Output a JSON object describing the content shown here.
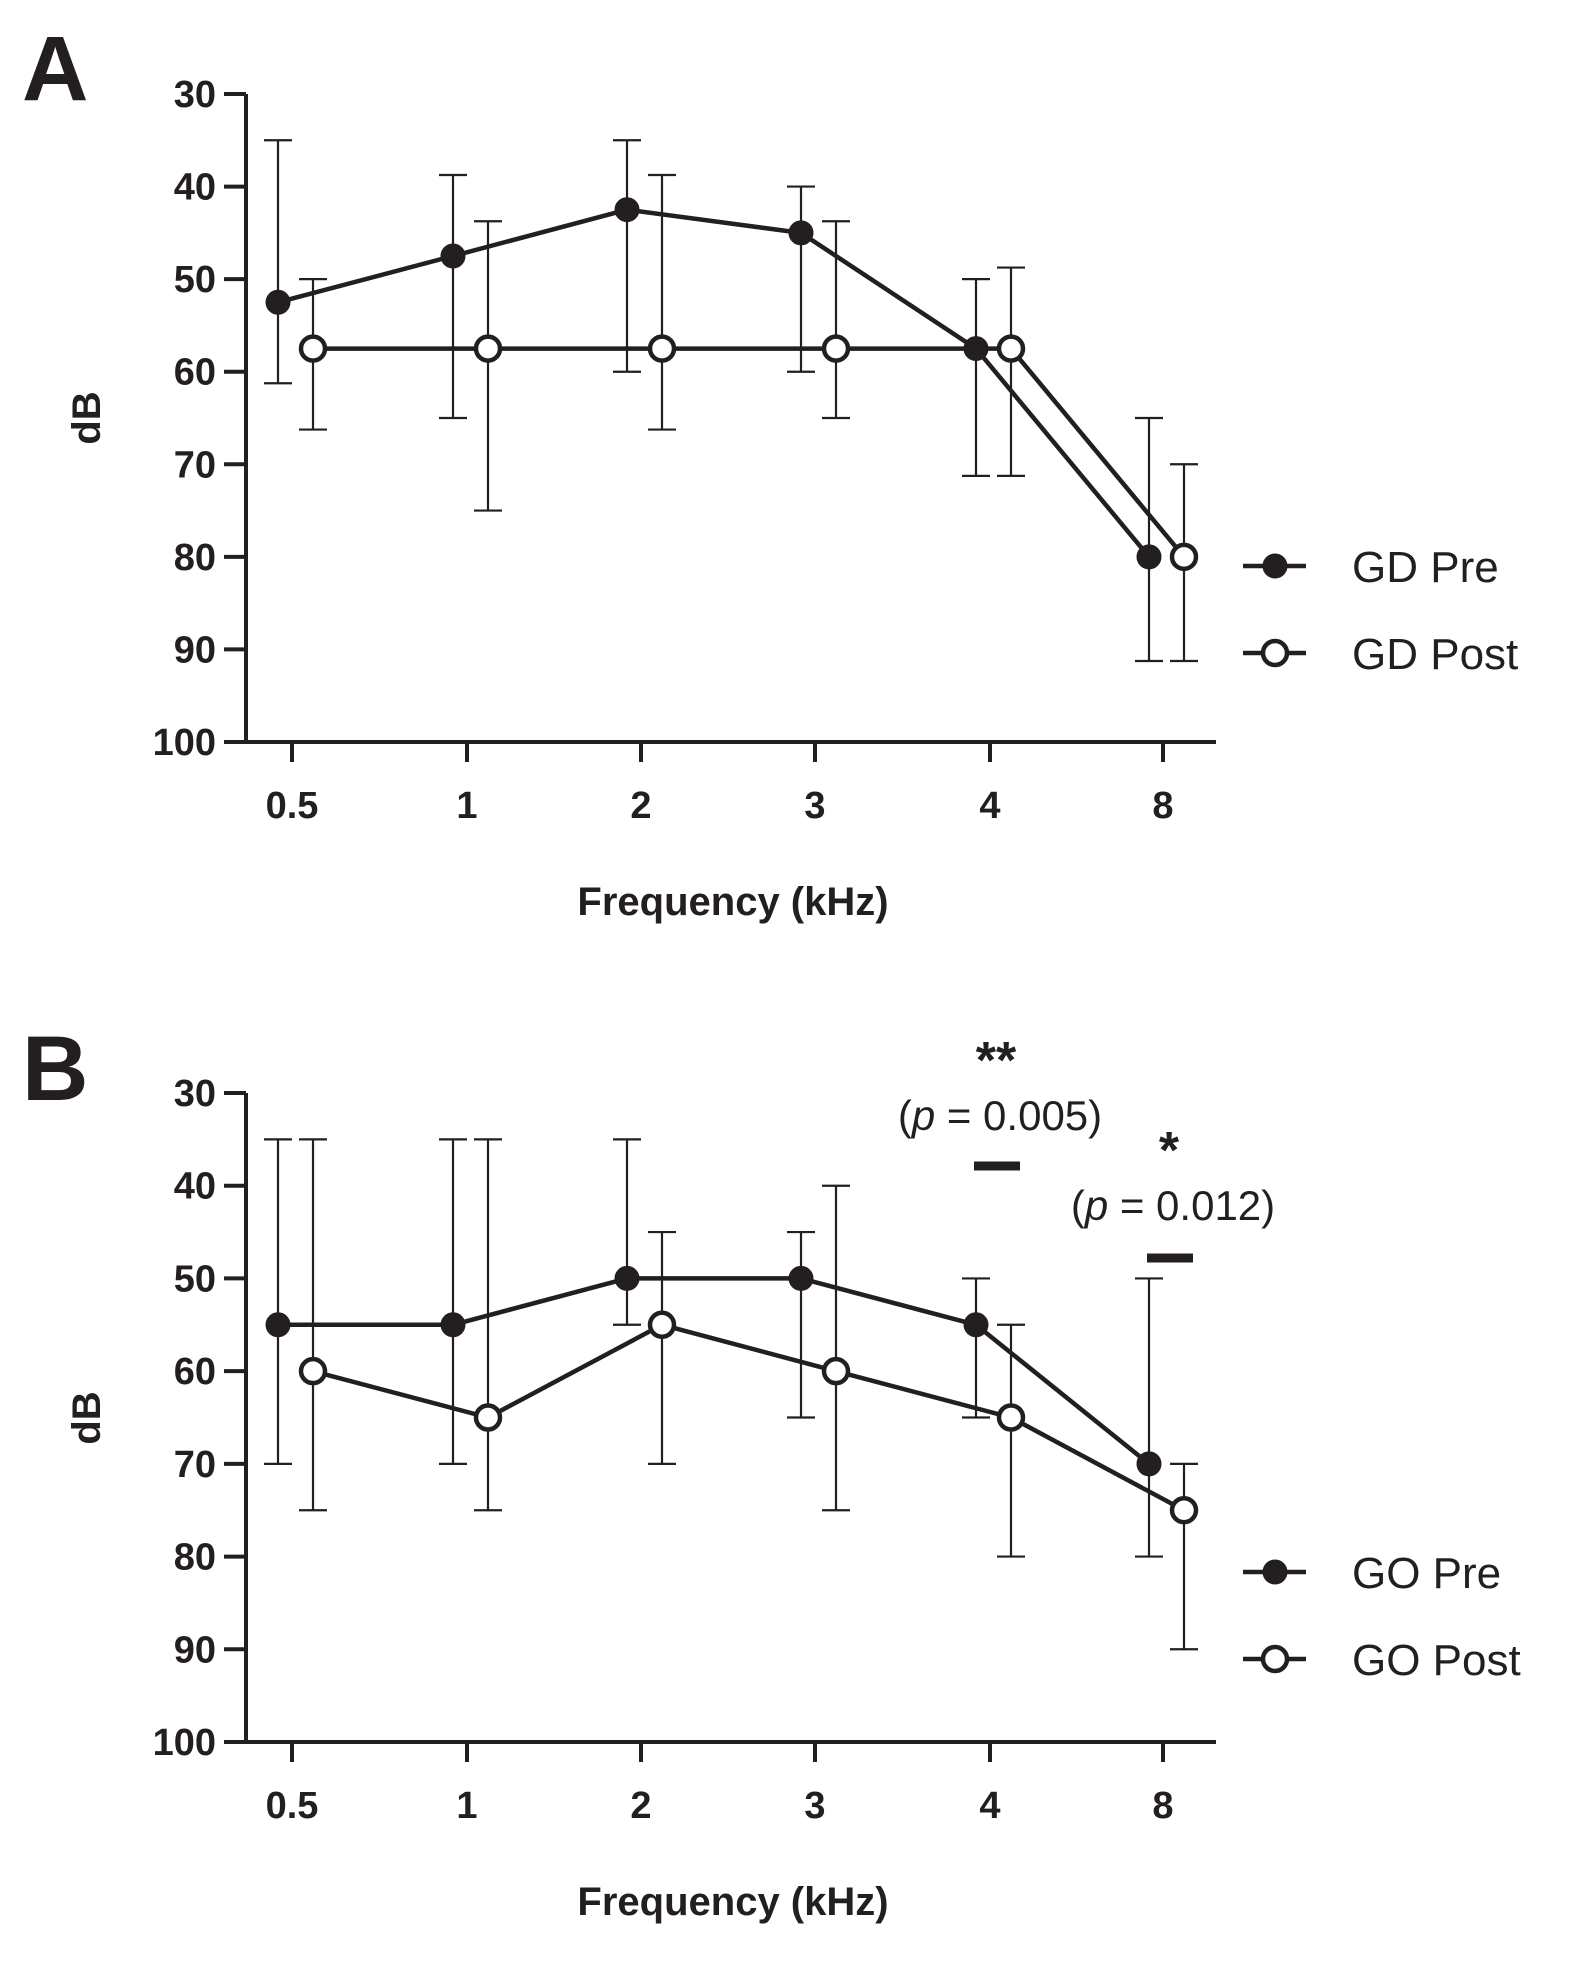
{
  "colors": {
    "ink": "#231f20",
    "marker_fill_open": "#ffffff",
    "background": "#ffffff"
  },
  "chart_data": [
    {
      "type": "line",
      "panel_label": "A",
      "title": "",
      "xlabel": "Frequency (kHz)",
      "ylabel": "dB",
      "categories": [
        "0.5",
        "1",
        "2",
        "3",
        "4",
        "8"
      ],
      "ylim": [
        100,
        30
      ],
      "y_inverted": true,
      "yticks": [
        "30",
        "40",
        "50",
        "60",
        "70",
        "80",
        "90",
        "100"
      ],
      "legend_position": "right",
      "series": [
        {
          "name": "GD Pre",
          "marker": "filled-circle",
          "values": [
            52.5,
            47.5,
            42.5,
            45,
            57.5,
            80
          ],
          "err_low": [
            35,
            38.75,
            35,
            40,
            50,
            65
          ],
          "err_high": [
            61.25,
            65,
            60,
            60,
            71.25,
            91.25
          ]
        },
        {
          "name": "GD Post",
          "marker": "open-circle",
          "values": [
            57.5,
            57.5,
            57.5,
            57.5,
            57.5,
            80
          ],
          "err_low": [
            50,
            43.75,
            38.75,
            43.75,
            48.75,
            70
          ],
          "err_high": [
            66.25,
            75,
            66.25,
            65,
            71.25,
            91.25
          ]
        }
      ],
      "annotations": []
    },
    {
      "type": "line",
      "panel_label": "B",
      "title": "",
      "xlabel": "Frequency (kHz)",
      "ylabel": "dB",
      "categories": [
        "0.5",
        "1",
        "2",
        "3",
        "4",
        "8"
      ],
      "ylim": [
        100,
        30
      ],
      "y_inverted": true,
      "yticks": [
        "30",
        "40",
        "50",
        "60",
        "70",
        "80",
        "90",
        "100"
      ],
      "legend_position": "right",
      "series": [
        {
          "name": "GO Pre",
          "marker": "filled-circle",
          "values": [
            55,
            55,
            50,
            50,
            55,
            70
          ],
          "err_low": [
            35,
            35,
            35,
            45,
            50,
            50
          ],
          "err_high": [
            70,
            70,
            55,
            65,
            65,
            80
          ]
        },
        {
          "name": "GO Post",
          "marker": "open-circle",
          "values": [
            60,
            65,
            55,
            60,
            65,
            75
          ],
          "err_low": [
            35,
            35,
            45,
            40,
            55,
            70
          ],
          "err_high": [
            75,
            75,
            70,
            75,
            80,
            90
          ]
        }
      ],
      "annotations": [
        {
          "category_index": 4,
          "stars": "**",
          "p_label": "p",
          "p_rest": " = 0.005)"
        },
        {
          "category_index": 5,
          "stars": "*",
          "p_label": "p",
          "p_rest": " = 0.012)"
        }
      ]
    }
  ]
}
